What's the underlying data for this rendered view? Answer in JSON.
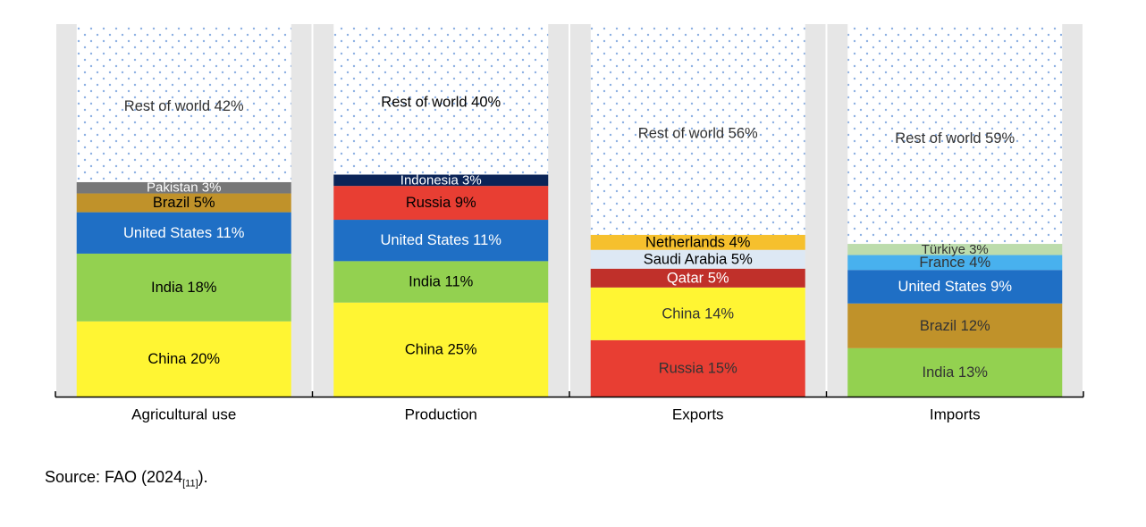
{
  "chart_data": {
    "type": "bar",
    "subtype": "stacked-100",
    "categories": [
      "Agricultural use",
      "Production",
      "Exports",
      "Imports"
    ],
    "grid": false,
    "legend": "none",
    "bars": [
      {
        "category": "Agricultural use",
        "segments": [
          {
            "label": "China",
            "value": 20,
            "color": "#fff533",
            "text_color": "#000000"
          },
          {
            "label": "India",
            "value": 18,
            "color": "#93d150",
            "text_color": "#000000"
          },
          {
            "label": "United States",
            "value": 11,
            "color": "#1f6fc5",
            "text_color": "#ffffff"
          },
          {
            "label": "Brazil",
            "value": 5,
            "color": "#c0922a",
            "text_color": "#000000"
          },
          {
            "label": "Pakistan",
            "value": 3,
            "color": "#777777",
            "text_color": "#ffffff"
          },
          {
            "label": "Rest of world",
            "value": 42,
            "color": "rest",
            "text_color": "#333333"
          }
        ]
      },
      {
        "category": "Production",
        "segments": [
          {
            "label": "China",
            "value": 25,
            "color": "#fff533",
            "text_color": "#000000"
          },
          {
            "label": "India",
            "value": 11,
            "color": "#93d150",
            "text_color": "#000000"
          },
          {
            "label": "United States",
            "value": 11,
            "color": "#1f6fc5",
            "text_color": "#ffffff"
          },
          {
            "label": "Russia",
            "value": 9,
            "color": "#e83e33",
            "text_color": "#000000"
          },
          {
            "label": "Indonesia",
            "value": 3,
            "color": "#0b2457",
            "text_color": "#ffffff"
          },
          {
            "label": "Rest of world",
            "value": 40,
            "color": "rest",
            "text_color": "#000000"
          }
        ]
      },
      {
        "category": "Exports",
        "segments": [
          {
            "label": "Russia",
            "value": 15,
            "color": "#e83e33",
            "text_color": "#333333"
          },
          {
            "label": "China",
            "value": 14,
            "color": "#fff533",
            "text_color": "#333333"
          },
          {
            "label": "Qatar",
            "value": 5,
            "color": "#c0302a",
            "text_color": "#ffffff"
          },
          {
            "label": "Saudi Arabia",
            "value": 5,
            "color": "#dde8f4",
            "text_color": "#000000"
          },
          {
            "label": "Netherlands",
            "value": 4,
            "color": "#f6c02d",
            "text_color": "#000000"
          },
          {
            "label": "Rest of world",
            "value": 56,
            "color": "rest",
            "text_color": "#333333"
          }
        ]
      },
      {
        "category": "Imports",
        "segments": [
          {
            "label": "India",
            "value": 13,
            "color": "#93d150",
            "text_color": "#333333"
          },
          {
            "label": "Brazil",
            "value": 12,
            "color": "#c0922a",
            "text_color": "#333333"
          },
          {
            "label": "United States",
            "value": 9,
            "color": "#1f6fc5",
            "text_color": "#ffffff"
          },
          {
            "label": "France",
            "value": 4,
            "color": "#48b1ee",
            "text_color": "#333333"
          },
          {
            "label": "Türkiye",
            "value": 3,
            "color": "#bcdcac",
            "text_color": "#333333"
          },
          {
            "label": "Rest of world",
            "value": 59,
            "color": "rest",
            "text_color": "#333333"
          }
        ]
      }
    ],
    "colors": {
      "panel_background": "#e6e6e6",
      "rest_background": "#ffffff",
      "rest_dots": "#8db0e3",
      "axis": "#000000"
    }
  },
  "source": {
    "prefix": "Source: FAO (2024",
    "ref": "[11]",
    "suffix": ")."
  }
}
